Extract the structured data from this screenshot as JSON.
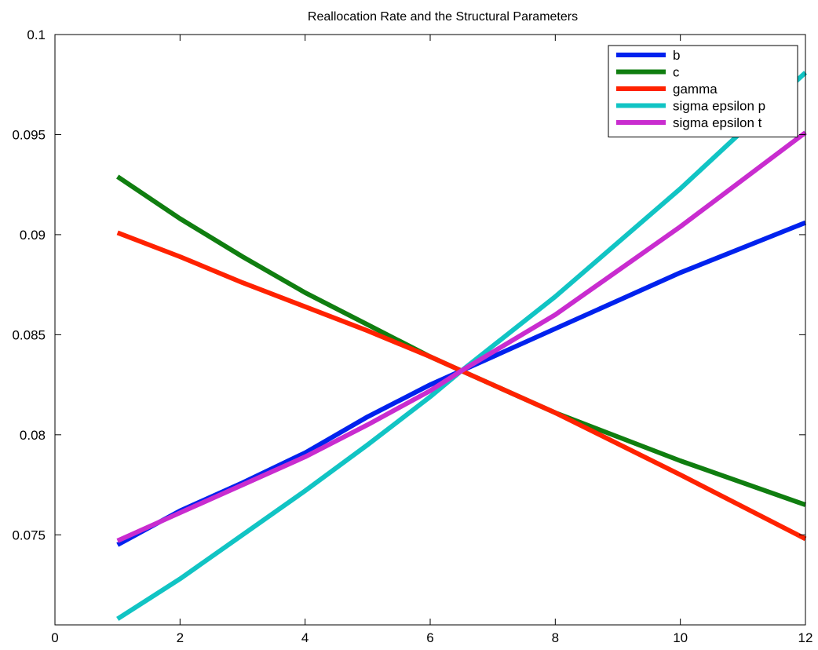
{
  "chart_data": {
    "type": "line",
    "title": "Reallocation Rate and the Structural Parameters",
    "xlabel": "",
    "ylabel": "",
    "xlim": [
      0,
      12
    ],
    "ylim": [
      0.0705,
      0.1
    ],
    "xticks": [
      0,
      2,
      4,
      6,
      8,
      10,
      12
    ],
    "xtick_labels": [
      "0",
      "2",
      "4",
      "6",
      "8",
      "10",
      "12"
    ],
    "yticks": [
      0.075,
      0.08,
      0.085,
      0.09,
      0.095,
      0.1
    ],
    "ytick_labels": [
      "0.075",
      "0.08",
      "0.085",
      "0.09",
      "0.095",
      "0.1"
    ],
    "grid": false,
    "legend_position": "top-right",
    "series": [
      {
        "name": "b",
        "color": "#0022ee",
        "x": [
          1,
          2,
          3,
          4,
          5,
          6,
          6.5,
          8,
          10,
          12
        ],
        "y": [
          0.0745,
          0.0762,
          0.0776,
          0.0791,
          0.0809,
          0.0825,
          0.0832,
          0.0853,
          0.0881,
          0.0906
        ]
      },
      {
        "name": "c",
        "color": "#107e10",
        "x": [
          1,
          2,
          3,
          4,
          5,
          6,
          6.5,
          8,
          10,
          12
        ],
        "y": [
          0.0929,
          0.0908,
          0.0889,
          0.0871,
          0.0855,
          0.0839,
          0.0832,
          0.0811,
          0.0787,
          0.0765
        ]
      },
      {
        "name": "gamma",
        "color": "#ff2200",
        "x": [
          1,
          2,
          3,
          4,
          5,
          6,
          6.5,
          8,
          10,
          12
        ],
        "y": [
          0.0901,
          0.0889,
          0.0876,
          0.0864,
          0.0852,
          0.0839,
          0.0832,
          0.0811,
          0.078,
          0.0748
        ]
      },
      {
        "name": "sigma epsilon p",
        "color": "#11c4c4",
        "x": [
          1,
          2,
          3,
          4,
          5,
          6,
          6.5,
          8,
          10,
          12
        ],
        "y": [
          0.0708,
          0.0728,
          0.075,
          0.0772,
          0.0795,
          0.0819,
          0.0832,
          0.0869,
          0.0923,
          0.0981
        ]
      },
      {
        "name": "sigma epsilon t",
        "color": "#c92ccf",
        "x": [
          1,
          2,
          3,
          4,
          5,
          6,
          6.5,
          8,
          10,
          12
        ],
        "y": [
          0.0747,
          0.0761,
          0.0775,
          0.0789,
          0.0805,
          0.0822,
          0.0832,
          0.086,
          0.0904,
          0.0951
        ]
      }
    ]
  }
}
